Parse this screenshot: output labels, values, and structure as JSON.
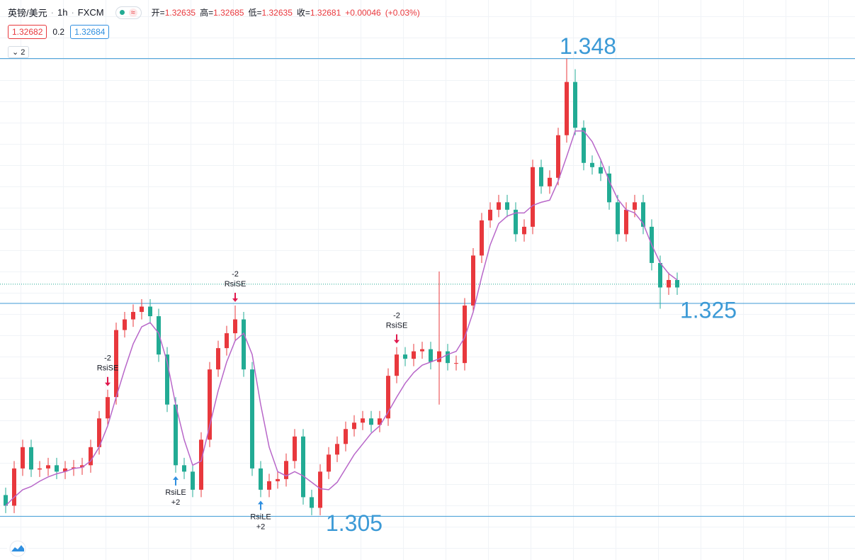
{
  "header": {
    "symbol": "英镑/美元",
    "interval": "1h",
    "exchange": "FXCM",
    "ohlc": [
      {
        "label": "开=",
        "value": 1.32635
      },
      {
        "label": "高=",
        "value": 1.32685
      },
      {
        "label": "低=",
        "value": 1.32635
      },
      {
        "label": "收=",
        "value": 1.32681
      }
    ],
    "change": "+0.00046",
    "change_pct": "(+0.03%)",
    "bid": 1.32682,
    "spread": 0.2,
    "ask": 1.32684,
    "indicators": 2
  },
  "chart_data": {
    "type": "candlestick",
    "ylim": [
      1.3009,
      1.3535
    ],
    "up_color": "#e8383d",
    "down_color": "#22ab94",
    "ma_color": "#b867c9",
    "level_color": "#3c9ad6",
    "sell_color": "#e0184d",
    "buy_color": "#2f8fe0",
    "open": [
      1.307,
      1.306,
      1.3095,
      1.3115,
      1.3094,
      1.3095,
      1.3098,
      1.3092,
      1.3095,
      1.3096,
      1.3098,
      1.3115,
      1.3142,
      1.3162,
      1.3225,
      1.3235,
      1.3242,
      1.3247,
      1.3238,
      1.3202,
      1.3155,
      1.3098,
      1.3092,
      1.3075,
      1.3122,
      1.3188,
      1.3208,
      1.3222,
      1.3235,
      1.3188,
      1.3095,
      1.3075,
      1.3083,
      1.3085,
      1.3102,
      1.3125,
      1.3068,
      1.3058,
      1.3092,
      1.3108,
      1.3118,
      1.3132,
      1.3138,
      1.3142,
      1.3136,
      1.3142,
      1.3182,
      1.3202,
      1.3198,
      1.3205,
      1.3207,
      1.3195,
      1.3205,
      1.3194,
      1.3194,
      1.3248,
      1.3295,
      1.3328,
      1.3338,
      1.3345,
      1.3338,
      1.3315,
      1.3322,
      1.3378,
      1.336,
      1.3368,
      1.3408,
      1.3458,
      1.3415,
      1.3382,
      1.3378,
      1.3372,
      1.3345,
      1.3315,
      1.3338,
      1.3345,
      1.3322,
      1.3288,
      1.3265,
      1.3272
    ],
    "high": [
      1.3077,
      1.3102,
      1.3122,
      1.3122,
      1.3102,
      1.3105,
      1.3105,
      1.3102,
      1.3103,
      1.3105,
      1.3122,
      1.3149,
      1.3169,
      1.3232,
      1.3242,
      1.3249,
      1.3254,
      1.3254,
      1.3245,
      1.3209,
      1.3162,
      1.3105,
      1.3099,
      1.3129,
      1.3195,
      1.3215,
      1.3229,
      1.3248,
      1.3242,
      1.3195,
      1.3102,
      1.309,
      1.3092,
      1.3109,
      1.3132,
      1.3132,
      1.3075,
      1.3099,
      1.3115,
      1.3125,
      1.3139,
      1.3145,
      1.3149,
      1.3149,
      1.3149,
      1.3189,
      1.3209,
      1.3209,
      1.3212,
      1.3214,
      1.3214,
      1.328,
      1.3212,
      1.3201,
      1.3255,
      1.3302,
      1.3335,
      1.3345,
      1.3352,
      1.3352,
      1.3345,
      1.3329,
      1.3385,
      1.3385,
      1.3375,
      1.3415,
      1.348,
      1.347,
      1.3422,
      1.3389,
      1.3385,
      1.3379,
      1.3352,
      1.3345,
      1.3352,
      1.3352,
      1.3329,
      1.3295,
      1.3279,
      1.3279
    ],
    "low": [
      1.3053,
      1.3053,
      1.3088,
      1.3087,
      1.3087,
      1.3088,
      1.3085,
      1.3085,
      1.3088,
      1.3089,
      1.3091,
      1.3108,
      1.3135,
      1.3155,
      1.3218,
      1.3228,
      1.3235,
      1.3231,
      1.3195,
      1.3148,
      1.3091,
      1.3085,
      1.3068,
      1.3068,
      1.3115,
      1.3181,
      1.3201,
      1.3215,
      1.3181,
      1.3088,
      1.3068,
      1.3068,
      1.3076,
      1.3078,
      1.3095,
      1.3061,
      1.3051,
      1.3051,
      1.3085,
      1.3101,
      1.3111,
      1.3125,
      1.3131,
      1.3129,
      1.3129,
      1.3135,
      1.3175,
      1.3191,
      1.3191,
      1.3198,
      1.3188,
      1.3155,
      1.3187,
      1.3187,
      1.3187,
      1.3241,
      1.3288,
      1.3321,
      1.3331,
      1.3331,
      1.3308,
      1.3308,
      1.3315,
      1.3353,
      1.3353,
      1.3361,
      1.3401,
      1.3408,
      1.3375,
      1.3371,
      1.3365,
      1.3338,
      1.3308,
      1.3308,
      1.3331,
      1.3315,
      1.3281,
      1.3245,
      1.3258,
      1.3258
    ],
    "close": [
      1.306,
      1.3095,
      1.3115,
      1.3094,
      1.3095,
      1.3098,
      1.3092,
      1.3095,
      1.3096,
      1.3098,
      1.3115,
      1.3142,
      1.3162,
      1.3225,
      1.3235,
      1.3242,
      1.3247,
      1.3238,
      1.3202,
      1.3155,
      1.3098,
      1.3092,
      1.3075,
      1.3122,
      1.3188,
      1.3208,
      1.3222,
      1.3235,
      1.3188,
      1.3095,
      1.3075,
      1.3083,
      1.3085,
      1.3102,
      1.3125,
      1.3068,
      1.3058,
      1.3092,
      1.3108,
      1.3118,
      1.3132,
      1.3138,
      1.3142,
      1.3136,
      1.3142,
      1.3182,
      1.3202,
      1.3198,
      1.3205,
      1.3207,
      1.3195,
      1.3205,
      1.3194,
      1.3194,
      1.3248,
      1.3295,
      1.3328,
      1.3338,
      1.3345,
      1.3338,
      1.3315,
      1.3322,
      1.3378,
      1.336,
      1.3368,
      1.3408,
      1.3458,
      1.3415,
      1.3382,
      1.3378,
      1.3372,
      1.3345,
      1.3315,
      1.3338,
      1.3345,
      1.3322,
      1.3288,
      1.3265,
      1.3272,
      1.3265
    ],
    "ma": [
      1.306,
      1.3068,
      1.3075,
      1.3078,
      1.3083,
      1.3087,
      1.309,
      1.3092,
      1.3095,
      1.3096,
      1.3102,
      1.3115,
      1.3135,
      1.3162,
      1.3188,
      1.3212,
      1.3228,
      1.3232,
      1.3222,
      1.3195,
      1.3155,
      1.3122,
      1.3098,
      1.3102,
      1.3135,
      1.3168,
      1.3195,
      1.3215,
      1.3222,
      1.3202,
      1.3155,
      1.3115,
      1.3092,
      1.3088,
      1.3092,
      1.3088,
      1.3082,
      1.3076,
      1.3075,
      1.3082,
      1.3095,
      1.3108,
      1.3118,
      1.3128,
      1.3135,
      1.3148,
      1.3162,
      1.3175,
      1.3185,
      1.3192,
      1.3195,
      1.3198,
      1.3202,
      1.3205,
      1.3218,
      1.3242,
      1.3275,
      1.3305,
      1.3325,
      1.3332,
      1.3335,
      1.3335,
      1.3342,
      1.3345,
      1.3347,
      1.3365,
      1.3388,
      1.3412,
      1.3412,
      1.3402,
      1.3385,
      1.3365,
      1.3348,
      1.3338,
      1.3335,
      1.3325,
      1.3305,
      1.3288,
      1.3278,
      1.3272
    ],
    "levels": [
      1.348,
      1.325,
      1.305
    ],
    "signals": [
      {
        "index": 12,
        "side": "sell",
        "label": "RsiSE",
        "qty": -2
      },
      {
        "index": 20,
        "side": "buy",
        "label": "RsiLE",
        "qty": {
          "value": 2,
          "label": "+2"
        }
      },
      {
        "index": 27,
        "side": "sell",
        "label": "RsiSE",
        "qty": -2
      },
      {
        "index": 30,
        "side": "buy",
        "label": "RsiLE",
        "qty": {
          "value": 2,
          "label": "+2"
        }
      },
      {
        "index": 46,
        "side": "sell",
        "label": "RsiSE",
        "qty": -2
      }
    ]
  }
}
